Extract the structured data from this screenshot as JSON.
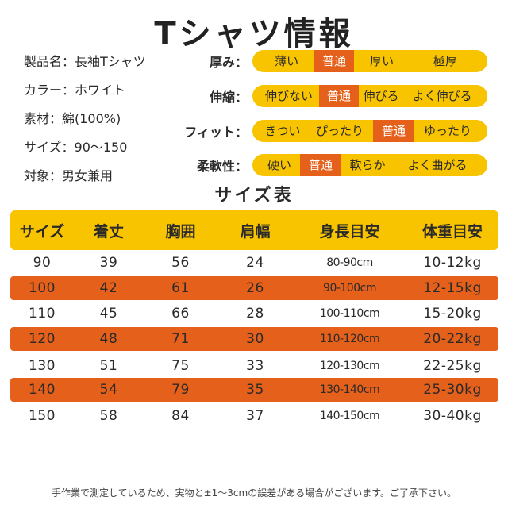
{
  "title": "Tシャツ情報",
  "info": [
    "製品名：長袖Tシャツ",
    "カラー：ホワイト",
    "素材：綿(100%)",
    "サイズ：90～150",
    "対象：男女兼用"
  ],
  "scales": [
    {
      "label": "厚み：",
      "options": [
        "薄い",
        "普通",
        "厚い",
        "極厚"
      ],
      "selected": 1
    },
    {
      "label": "伸縮：",
      "options": [
        "伸びない",
        "普通",
        "伸びる",
        "よく伸びる"
      ],
      "selected": 1
    },
    {
      "label": "フィット：",
      "options": [
        "きつい",
        "ぴったり",
        "普通",
        "ゆったり"
      ],
      "selected": 2
    },
    {
      "label": "柔軟性：",
      "options": [
        "硬い",
        "普通",
        "軟らか",
        "よく曲がる"
      ],
      "selected": 1
    }
  ],
  "colors": {
    "accent_yellow": "#f8c400",
    "accent_orange": "#e5601a"
  },
  "size_table": {
    "title": "サイズ表",
    "headers": [
      "サイズ",
      "着丈",
      "胸囲",
      "肩幅",
      "身長目安",
      "体重目安"
    ],
    "rows": [
      [
        "90",
        "39",
        "56",
        "24",
        "80-90cm",
        "10-12kg"
      ],
      [
        "100",
        "42",
        "61",
        "26",
        "90-100cm",
        "12-15kg"
      ],
      [
        "110",
        "45",
        "66",
        "28",
        "100-110cm",
        "15-20kg"
      ],
      [
        "120",
        "48",
        "71",
        "30",
        "110-120cm",
        "20-22kg"
      ],
      [
        "130",
        "51",
        "75",
        "33",
        "120-130cm",
        "22-25kg"
      ],
      [
        "140",
        "54",
        "79",
        "35",
        "130-140cm",
        "25-30kg"
      ],
      [
        "150",
        "58",
        "84",
        "37",
        "140-150cm",
        "30-40kg"
      ]
    ]
  },
  "note": "手作業で測定しているため、実物と±1～3cmの誤差がある場合がございます。ご了承下さい。"
}
